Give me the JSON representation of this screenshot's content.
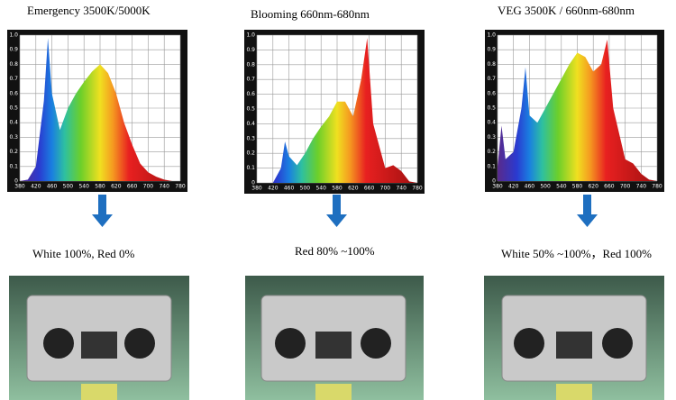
{
  "chart_data": [
    {
      "type": "area",
      "title": "Emergency 3500K/5000K",
      "x": [
        380,
        400,
        420,
        440,
        450,
        460,
        480,
        500,
        520,
        540,
        560,
        580,
        600,
        620,
        640,
        660,
        680,
        700,
        720,
        740,
        760,
        780
      ],
      "values": [
        0,
        0.01,
        0.1,
        0.55,
        0.98,
        0.6,
        0.35,
        0.5,
        0.6,
        0.68,
        0.75,
        0.8,
        0.74,
        0.6,
        0.4,
        0.25,
        0.12,
        0.06,
        0.03,
        0.01,
        0,
        0
      ],
      "xlim": [
        380,
        780
      ],
      "xticks": [
        380,
        420,
        460,
        500,
        540,
        580,
        620,
        660,
        700,
        740,
        780
      ],
      "ylim": [
        0,
        1
      ],
      "yticks": [
        0,
        0.1,
        0.2,
        0.3,
        0.4,
        0.5,
        0.6,
        0.7,
        0.8,
        0.9,
        {
          "value": 1,
          "label": "1.0"
        }
      ],
      "grid": true
    },
    {
      "type": "area",
      "title": "Blooming 660nm-680nm",
      "x": [
        380,
        420,
        440,
        450,
        460,
        480,
        500,
        520,
        540,
        560,
        580,
        600,
        620,
        640,
        655,
        670,
        700,
        720,
        740,
        760,
        780
      ],
      "values": [
        0,
        0,
        0.1,
        0.28,
        0.18,
        0.12,
        0.2,
        0.3,
        0.38,
        0.45,
        0.55,
        0.55,
        0.45,
        0.7,
        0.98,
        0.4,
        0.1,
        0.12,
        0.08,
        0.01,
        0
      ],
      "xlim": [
        380,
        780
      ],
      "xticks": [
        380,
        420,
        460,
        500,
        540,
        580,
        620,
        660,
        700,
        740,
        780
      ],
      "ylim": [
        0,
        1
      ],
      "yticks": [
        0,
        0.1,
        0.2,
        0.3,
        0.4,
        0.5,
        0.6,
        0.7,
        0.8,
        0.9,
        {
          "value": 1,
          "label": "1.0"
        }
      ],
      "grid": true
    },
    {
      "type": "area",
      "title": "VEG 3500K / 660nm-680nm",
      "x": [
        380,
        390,
        400,
        420,
        440,
        450,
        460,
        480,
        500,
        520,
        540,
        560,
        580,
        600,
        620,
        640,
        655,
        670,
        700,
        720,
        740,
        760,
        780
      ],
      "values": [
        0.1,
        0.38,
        0.15,
        0.2,
        0.5,
        0.78,
        0.45,
        0.4,
        0.5,
        0.6,
        0.7,
        0.8,
        0.88,
        0.85,
        0.75,
        0.8,
        0.97,
        0.5,
        0.15,
        0.12,
        0.05,
        0.01,
        0
      ],
      "xlim": [
        380,
        780
      ],
      "xticks": [
        380,
        420,
        460,
        500,
        540,
        580,
        620,
        660,
        700,
        740,
        780
      ],
      "ylim": [
        0,
        1
      ],
      "yticks": [
        0,
        0.1,
        0.2,
        0.3,
        0.4,
        0.5,
        0.6,
        0.7,
        0.8,
        0.9,
        {
          "value": 1,
          "label": "1.0"
        }
      ],
      "grid": true
    }
  ],
  "captions": [
    "White 100%, Red 0%",
    "Red 80% ~100%",
    "White 50% ~100%，Red 100%"
  ]
}
